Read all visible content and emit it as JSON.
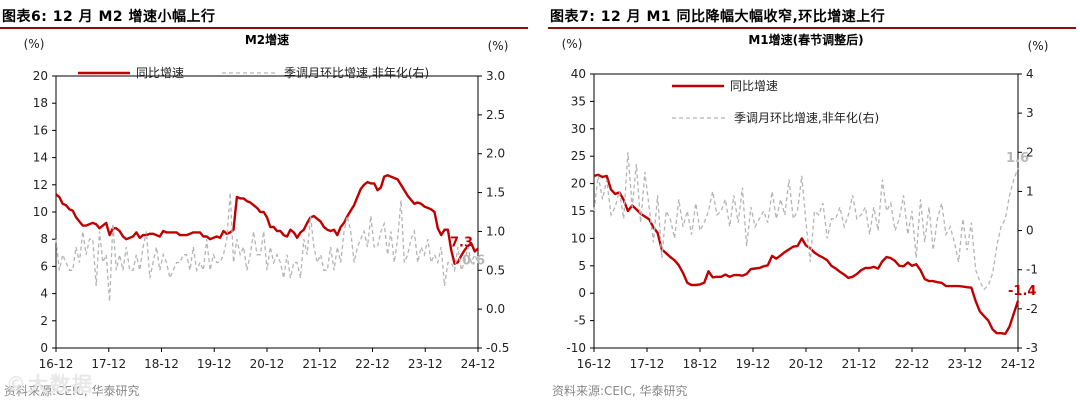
{
  "figures": [
    {
      "heading": "图表6:  12 月 M2 增速小幅上行",
      "source": "资料来源:CEIC, 华泰研究"
    },
    {
      "heading": "图表7:  12 月 M1 同比降幅大幅收窄,环比增速上行",
      "source": "资料来源:CEIC, 华泰研究"
    }
  ],
  "watermark": "©大数据",
  "colors": {
    "primary": "#c00000",
    "secondary": "#b4b4b4",
    "title_rule": "#8c0f0f"
  },
  "chart_data": [
    {
      "type": "line",
      "title": "M2增速",
      "left_unit": "(%)",
      "right_unit": "(%)",
      "x_ticks": [
        "16-12",
        "17-12",
        "18-12",
        "19-12",
        "20-12",
        "21-12",
        "22-12",
        "23-12",
        "24-12"
      ],
      "left_ylim": [
        0,
        20
      ],
      "left_ticks": [
        0,
        2,
        4,
        6,
        8,
        10,
        12,
        14,
        16,
        18,
        20
      ],
      "right_ylim": [
        -0.5,
        3.0
      ],
      "right_ticks": [
        -0.5,
        0.0,
        0.5,
        1.0,
        1.5,
        2.0,
        2.5,
        3.0
      ],
      "right_tick_labels": [
        "-0.5",
        "0.0",
        "0.5",
        "1.0",
        "1.5",
        "2.0",
        "2.5",
        "3.0"
      ],
      "legend_position": "top",
      "series": [
        {
          "name": "同比增速",
          "axis": "left",
          "style": "solid",
          "end_label": "7.3",
          "values": [
            11.3,
            11.1,
            10.6,
            10.5,
            10.2,
            10.1,
            9.6,
            9.3,
            9.0,
            9.0,
            9.1,
            9.2,
            9.1,
            8.8,
            9.0,
            9.2,
            8.3,
            8.8,
            8.8,
            8.6,
            8.2,
            8.0,
            8.1,
            8.2,
            8.5,
            8.1,
            8.3,
            8.3,
            8.4,
            8.4,
            8.3,
            8.2,
            8.6,
            8.5,
            8.5,
            8.5,
            8.5,
            8.3,
            8.3,
            8.3,
            8.4,
            8.5,
            8.5,
            8.5,
            8.2,
            8.2,
            8.0,
            8.1,
            8.2,
            8.1,
            8.6,
            8.4,
            8.5,
            8.7,
            11.1,
            11.0,
            11.0,
            10.8,
            10.7,
            10.5,
            10.3,
            10.0,
            10.0,
            9.6,
            8.9,
            8.9,
            8.6,
            8.6,
            8.3,
            8.2,
            8.7,
            8.5,
            8.1,
            8.5,
            8.7,
            9.2,
            9.6,
            9.7,
            9.5,
            9.3,
            8.9,
            8.7,
            8.6,
            8.7,
            8.3,
            8.9,
            9.2,
            9.7,
            10.1,
            10.5,
            11.1,
            11.7,
            12.0,
            12.2,
            12.1,
            12.1,
            11.6,
            11.8,
            12.6,
            12.7,
            12.6,
            12.5,
            12.4,
            12.0,
            11.6,
            11.2,
            10.9,
            10.6,
            10.7,
            10.6,
            10.4,
            10.3,
            10.2,
            10.0,
            8.8,
            8.3,
            8.7,
            8.7,
            7.2,
            6.2,
            6.3,
            6.8,
            7.2,
            7.5,
            7.7,
            7.1,
            7.3
          ]
        },
        {
          "name": "季调月环比增速,非年化(右)",
          "axis": "right",
          "style": "dashed",
          "end_label": "0.6",
          "values": [
            0.9,
            0.5,
            0.7,
            0.6,
            0.5,
            0.5,
            0.8,
            0.6,
            1.0,
            0.7,
            0.9,
            0.9,
            0.3,
            1.0,
            0.6,
            0.7,
            0.1,
            1.1,
            0.5,
            0.7,
            0.5,
            0.8,
            0.5,
            0.5,
            0.7,
            0.5,
            0.8,
            1.0,
            0.4,
            0.6,
            0.8,
            0.5,
            0.7,
            0.6,
            0.4,
            0.5,
            0.6,
            0.6,
            0.7,
            0.7,
            0.5,
            0.8,
            0.5,
            0.6,
            0.5,
            0.9,
            0.5,
            0.7,
            0.6,
            0.6,
            0.7,
            0.9,
            1.5,
            0.6,
            0.9,
            0.7,
            0.8,
            0.5,
            0.7,
            1.0,
            0.7,
            0.7,
            1.0,
            0.5,
            0.8,
            0.6,
            0.7,
            0.6,
            0.4,
            0.7,
            0.4,
            0.6,
            0.6,
            0.4,
            0.9,
            0.7,
            1.2,
            0.8,
            0.6,
            0.7,
            0.5,
            0.5,
            0.8,
            0.5,
            0.8,
            0.6,
            1.0,
            1.2,
            1.0,
            0.6,
            0.8,
            0.9,
            1.0,
            0.8,
            1.2,
            0.8,
            0.8,
            1.0,
            1.1,
            0.7,
            1.0,
            0.6,
            0.9,
            1.4,
            0.6,
            0.7,
            0.9,
            1.0,
            0.6,
            0.8,
            0.7,
            0.9,
            0.6,
            0.7,
            0.6,
            0.8,
            0.3,
            0.6,
            0.6,
            0.5,
            0.8,
            0.5,
            0.6,
            0.8,
            0.6,
            0.7,
            0.6
          ]
        }
      ]
    },
    {
      "type": "line",
      "title": "M1增速(春节调整后)",
      "left_unit": "(%)",
      "right_unit": "(%)",
      "x_ticks": [
        "16-12",
        "17-12",
        "18-12",
        "19-12",
        "20-12",
        "21-12",
        "22-12",
        "23-12",
        "24-12"
      ],
      "left_ylim": [
        -10,
        40
      ],
      "left_ticks": [
        -10,
        -5,
        0,
        5,
        10,
        15,
        20,
        25,
        30,
        35,
        40
      ],
      "right_ylim": [
        -3,
        4
      ],
      "right_ticks": [
        -3,
        -2,
        -1,
        0,
        1,
        2,
        3,
        4
      ],
      "right_tick_labels": [
        "-3",
        "-2",
        "-1",
        "0",
        "1",
        "2",
        "3",
        "4"
      ],
      "legend_position": "top",
      "series": [
        {
          "name": "同比增速",
          "axis": "left",
          "style": "solid",
          "end_label": "-1.4",
          "values": [
            21.4,
            21.6,
            21.2,
            21.4,
            18.9,
            18.1,
            18.4,
            17.0,
            15.0,
            16.0,
            15.3,
            14.5,
            14.0,
            13.5,
            12.0,
            11.0,
            8.0,
            7.3,
            6.6,
            6.0,
            5.1,
            3.7,
            1.9,
            1.5,
            1.5,
            1.6,
            1.9,
            4.0,
            2.9,
            3.0,
            3.0,
            3.4,
            3.0,
            3.3,
            3.3,
            3.2,
            3.5,
            4.4,
            4.5,
            4.6,
            4.9,
            5.1,
            6.8,
            6.3,
            6.9,
            7.5,
            8.0,
            8.5,
            8.6,
            10.0,
            8.7,
            8.2,
            7.4,
            6.9,
            6.5,
            6.0,
            5.0,
            4.5,
            3.9,
            3.4,
            2.8,
            3.0,
            3.5,
            4.2,
            4.6,
            4.6,
            4.8,
            4.5,
            5.8,
            6.6,
            6.4,
            5.9,
            5.0,
            4.9,
            5.6,
            5.0,
            5.3,
            4.2,
            2.6,
            2.2,
            2.2,
            2.0,
            1.9,
            1.3,
            1.3,
            1.3,
            1.3,
            1.2,
            1.1,
            1.0,
            -1.4,
            -3.3,
            -4.2,
            -5.0,
            -6.6,
            -7.3,
            -7.3,
            -7.4,
            -6.1,
            -3.7,
            -1.4
          ]
        },
        {
          "name": "季调月环比增速,非年化(右)",
          "axis": "right",
          "style": "dashed",
          "end_label": "1.6",
          "values": [
            0.5,
            1.4,
            0.8,
            1.3,
            0.4,
            0.6,
            1.0,
            0.3,
            2.0,
            0.6,
            1.7,
            0.2,
            1.5,
            0.6,
            -0.3,
            0.9,
            -0.7,
            0.5,
            0.3,
            -0.2,
            0.8,
            0.1,
            0.5,
            -0.1,
            0.7,
            0.0,
            0.2,
            0.5,
            1.0,
            0.4,
            0.5,
            0.8,
            0.1,
            0.9,
            0.2,
            1.1,
            -0.4,
            0.6,
            0.1,
            0.3,
            0.5,
            0.2,
            1.0,
            0.3,
            0.8,
            0.4,
            1.3,
            0.3,
            0.5,
            1.4,
            0.2,
            -0.8,
            0.5,
            0.4,
            0.7,
            -0.2,
            0.3,
            0.3,
            0.6,
            0.1,
            0.4,
            0.9,
            0.3,
            0.4,
            0.6,
            -0.1,
            0.6,
            0.0,
            1.3,
            0.5,
            0.7,
            0.0,
            0.3,
            0.9,
            -0.1,
            0.5,
            -0.7,
            0.8,
            -0.3,
            0.6,
            -0.5,
            0.3,
            0.7,
            -0.1,
            0.1,
            -0.3,
            -0.8,
            0.3,
            -0.5,
            0.2,
            -1.0,
            -1.3,
            -1.5,
            -1.4,
            -1.1,
            -0.4,
            0.1,
            0.3,
            0.9,
            1.3,
            1.6
          ]
        }
      ]
    }
  ]
}
